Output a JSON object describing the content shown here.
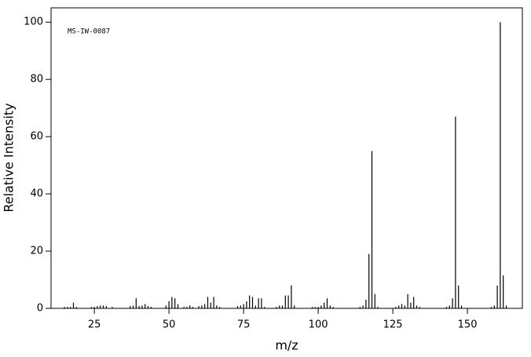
{
  "chart_data": {
    "type": "bar",
    "annotation": "MS-IW-0087",
    "xlabel": "m/z",
    "ylabel": "Relative Intensity",
    "color": "#000000",
    "x": [
      15,
      16,
      17,
      18,
      19,
      24,
      25,
      26,
      27,
      28,
      29,
      31,
      37,
      38,
      39,
      40,
      41,
      42,
      43,
      44,
      49,
      50,
      51,
      52,
      53,
      55,
      56,
      57,
      58,
      60,
      61,
      62,
      63,
      64,
      65,
      66,
      67,
      73,
      74,
      75,
      76,
      77,
      78,
      79,
      80,
      81,
      82,
      86,
      87,
      88,
      89,
      90,
      91,
      92,
      98,
      99,
      100,
      101,
      102,
      103,
      104,
      105,
      114,
      115,
      116,
      117,
      118,
      119,
      120,
      126,
      127,
      128,
      129,
      130,
      131,
      132,
      133,
      134,
      143,
      144,
      145,
      146,
      147,
      148,
      158,
      159,
      160,
      161,
      162,
      163
    ],
    "values": [
      0.5,
      0.5,
      0.5,
      2,
      0.5,
      0.5,
      0.5,
      0.8,
      1,
      1,
      0.8,
      0.5,
      0.8,
      1,
      3.5,
      0.8,
      1,
      1.5,
      0.8,
      0.5,
      1,
      2.5,
      4,
      3.5,
      1.5,
      0.5,
      0.5,
      1,
      0.5,
      0.8,
      1,
      1.5,
      4,
      2,
      4,
      1,
      0.5,
      0.8,
      1,
      1.5,
      2.5,
      4.5,
      4,
      1,
      3.5,
      3.5,
      0.5,
      0.5,
      1,
      1,
      4.5,
      4.5,
      8,
      1,
      0.5,
      0.5,
      0.5,
      1,
      2,
      3.5,
      1,
      0.5,
      0.5,
      1,
      3,
      19,
      55,
      5,
      0.5,
      0.5,
      1,
      1.5,
      1,
      5,
      2,
      4,
      1,
      0.5,
      0.5,
      1,
      3.5,
      67,
      8,
      1,
      0.5,
      1,
      8,
      100,
      11.5,
      1
    ],
    "xlim": [
      10.5,
      168.4
    ],
    "ylim": [
      0,
      105
    ],
    "xticks": [
      25,
      50,
      75,
      100,
      125,
      150
    ],
    "yticks": [
      0,
      20,
      40,
      60,
      80,
      100
    ]
  }
}
